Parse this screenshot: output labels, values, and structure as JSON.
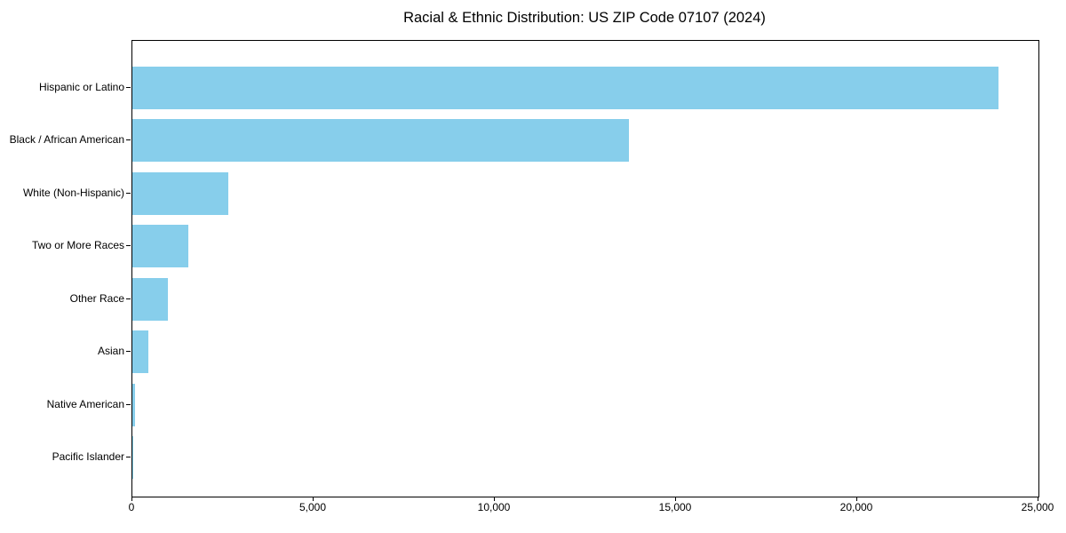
{
  "chart_data": {
    "type": "bar",
    "orientation": "horizontal",
    "title": "Racial & Ethnic Distribution: US ZIP Code 07107 (2024)",
    "categories": [
      "Hispanic or Latino",
      "Black / African American",
      "White (Non-Hispanic)",
      "Two or More Races",
      "Other Race",
      "Asian",
      "Native American",
      "Pacific Islander"
    ],
    "values": [
      23900,
      13700,
      2640,
      1540,
      970,
      430,
      70,
      25
    ],
    "xlabel": "",
    "ylabel": "",
    "xlim": [
      0,
      25000
    ],
    "x_ticks": [
      0,
      5000,
      10000,
      15000,
      20000,
      25000
    ],
    "x_tick_labels": [
      "0",
      "5,000",
      "10,000",
      "15,000",
      "20,000",
      "25,000"
    ],
    "grid": false,
    "legend": false,
    "bar_color": "#87CEEB",
    "axis_color": "#000000",
    "background_color": "#FFFFFF"
  }
}
